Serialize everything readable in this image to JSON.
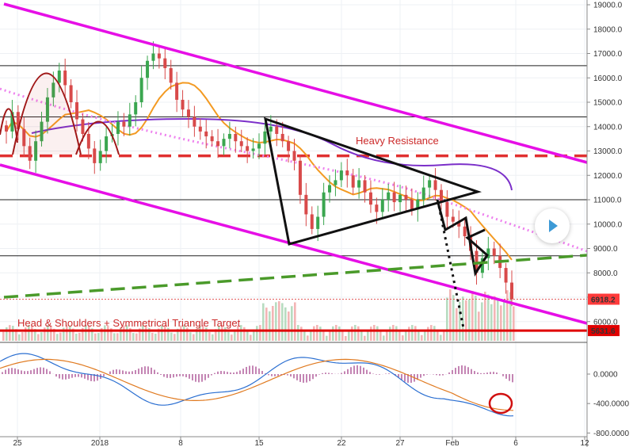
{
  "chart_data": {
    "type": "candlestick",
    "instrument": "BTC",
    "price_axis": {
      "ylim": [
        5000,
        19000
      ],
      "ticks": [
        "19000.0",
        "18000.0",
        "17000.0",
        "16000.0",
        "15000.0",
        "14000.0",
        "13000.0",
        "12000.0",
        "11000.0",
        "10000.0",
        "9000.0",
        "8000.0",
        "7000.0",
        "6000.0"
      ]
    },
    "macd_axis": {
      "ylim": [
        -830,
        260
      ],
      "ticks": [
        "0.0000",
        "-400.0000",
        "-800.0000"
      ]
    },
    "time_axis": {
      "labels": [
        "25",
        "2018",
        "8",
        "15",
        "22",
        "27",
        "Feb",
        "6",
        "12"
      ]
    },
    "price_badges": [
      {
        "value": "6918.2",
        "color": "#ff3b3b"
      },
      {
        "value": "5631.6",
        "color": "#e00000"
      }
    ],
    "annotations": {
      "heavy_resistance": "Heavy Resistance",
      "target": "Head & Shoulders + Symmetrical Triangle Target"
    },
    "colors": {
      "channel": "#e60fe6",
      "resistance": "#e03030",
      "ma_orange": "#f39a22",
      "ma_purple": "#7b2fc9",
      "ma_pink": "#ee82ee",
      "green_dash": "#4a9a2a",
      "candle_up": "#3aa64f",
      "candle_down": "#d84a4a",
      "macd": "#2b6fd1",
      "signal": "#e07a20"
    },
    "horizontal_levels": [
      16500,
      14400,
      12800,
      11000,
      8700,
      6918.2,
      5631.6
    ],
    "closes": [
      13800,
      14600,
      13900,
      13200,
      12600,
      13400,
      14200,
      15200,
      15800,
      16300,
      15700,
      15000,
      14300,
      13700,
      13100,
      12500,
      13000,
      13600,
      13700,
      14200,
      14000,
      14500,
      15000,
      16000,
      16700,
      17000,
      16800,
      16400,
      15800,
      15100,
      14700,
      14400,
      14000,
      13800,
      13600,
      13400,
      13200,
      13500,
      13700,
      13400,
      13200,
      13000,
      13100,
      13300,
      13800,
      14000,
      13700,
      13400,
      13000,
      12600,
      11200,
      10400,
      9800,
      10300,
      11300,
      11600,
      11800,
      12200,
      12000,
      11500,
      11800,
      11300,
      10800,
      10500,
      11000,
      11300,
      10900,
      11200,
      11000,
      10600,
      11000,
      11500,
      11800,
      11400,
      10900,
      10300,
      10100,
      9900,
      9500,
      8900,
      8000,
      8600,
      9000,
      8700,
      8200,
      7600,
      6918.2
    ]
  }
}
